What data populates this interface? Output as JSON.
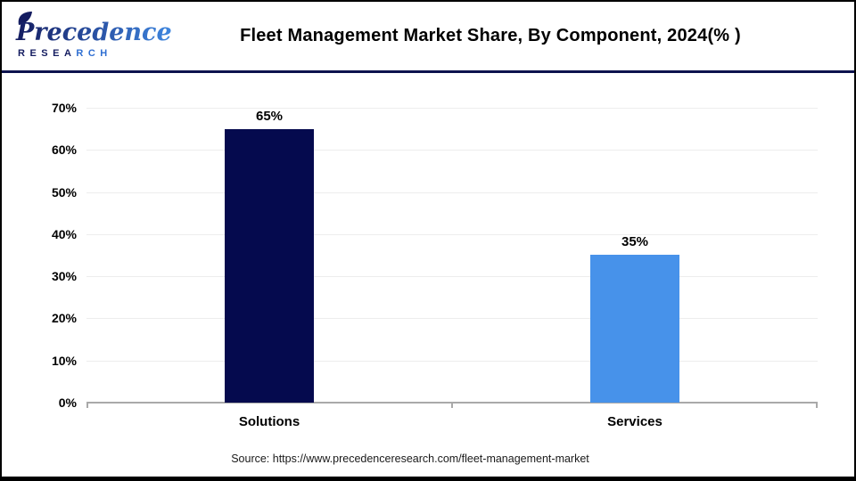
{
  "header": {
    "title": "Fleet Management Market Share, By Component, 2024(% )",
    "logo": {
      "brand_word": "Precedence",
      "brand_sub_left": "RESEA",
      "brand_sub_right": "RCH",
      "navy": "#141C60",
      "blue": "#3E86DF"
    }
  },
  "chart_data": {
    "type": "bar",
    "title": "Fleet Management Market Share, By Component, 2024(% )",
    "categories": [
      "Solutions",
      "Services"
    ],
    "values": [
      65,
      35
    ],
    "value_labels": [
      "65%",
      "35%"
    ],
    "bar_colors": [
      "#050A4E",
      "#4792EA"
    ],
    "xlabel": "",
    "ylabel": "",
    "ylim": [
      0,
      70
    ],
    "ytick_values": [
      0,
      10,
      20,
      30,
      40,
      50,
      60,
      70
    ],
    "ytick_labels": [
      "0%",
      "10%",
      "20%",
      "30%",
      "40%",
      "50%",
      "60%",
      "70%"
    ],
    "grid": "horizontal",
    "legend_position": "none",
    "gridline_color": "#EDEDED",
    "axis_color": "#A9A9A9"
  },
  "footer": {
    "source": "Source: https://www.precedenceresearch.com/fleet-management-market"
  }
}
